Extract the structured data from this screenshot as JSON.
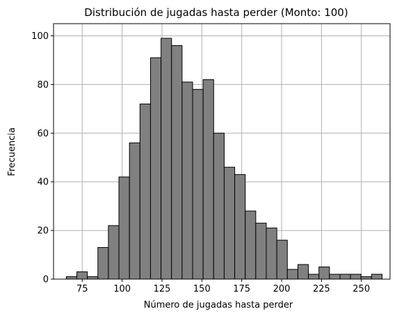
{
  "chart_data": {
    "type": "bar",
    "title": "Distribución de jugadas hasta perder (Monto: 100)",
    "xlabel": "Número de jugadas hasta perder",
    "ylabel": "Frecuencia",
    "xlim": [
      57,
      268
    ],
    "ylim": [
      0,
      105
    ],
    "grid": true,
    "bar_color": "#808080",
    "edge_color": "#000000",
    "grid_color": "#b0b0b0",
    "x_ticks": [
      75,
      100,
      125,
      150,
      175,
      200,
      225,
      250
    ],
    "y_ticks": [
      0,
      20,
      40,
      60,
      80,
      100
    ],
    "bin_edges": [
      65,
      71.6,
      78.2,
      84.8,
      91.4,
      98.0,
      104.6,
      111.2,
      117.8,
      124.4,
      131.0,
      137.6,
      144.2,
      150.8,
      157.4,
      164.0,
      170.6,
      177.2,
      183.8,
      190.4,
      197.0,
      203.6,
      210.2,
      216.8,
      223.4,
      230.0,
      236.6,
      243.2,
      249.8,
      256.4,
      263.0
    ],
    "values": [
      1,
      3,
      1,
      13,
      22,
      42,
      56,
      72,
      91,
      99,
      96,
      81,
      78,
      82,
      60,
      46,
      43,
      28,
      23,
      21,
      16,
      4,
      6,
      2,
      5,
      2,
      2,
      2,
      1,
      2
    ]
  }
}
